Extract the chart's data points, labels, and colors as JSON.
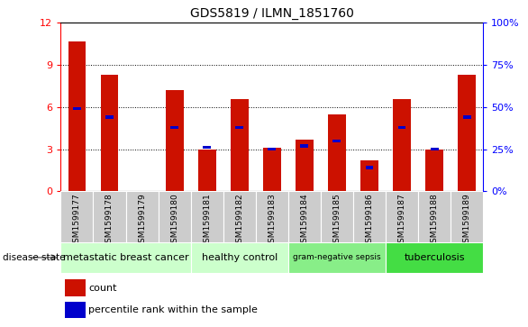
{
  "title": "GDS5819 / ILMN_1851760",
  "samples": [
    "GSM1599177",
    "GSM1599178",
    "GSM1599179",
    "GSM1599180",
    "GSM1599181",
    "GSM1599182",
    "GSM1599183",
    "GSM1599184",
    "GSM1599185",
    "GSM1599186",
    "GSM1599187",
    "GSM1599188",
    "GSM1599189"
  ],
  "counts": [
    10.7,
    8.3,
    0,
    7.2,
    3.0,
    6.6,
    3.1,
    3.7,
    5.5,
    2.2,
    6.6,
    3.0,
    8.3
  ],
  "percentiles": [
    49,
    44,
    0,
    38,
    26,
    38,
    25,
    27,
    30,
    14,
    38,
    25,
    44
  ],
  "group_labels": [
    "metastatic breast cancer",
    "healthy control",
    "gram-negative sepsis",
    "tuberculosis"
  ],
  "group_ranges": [
    [
      0,
      4
    ],
    [
      4,
      7
    ],
    [
      7,
      10
    ],
    [
      10,
      13
    ]
  ],
  "group_colors": [
    "#ccffcc",
    "#ccffcc",
    "#88ee88",
    "#44dd44"
  ],
  "group_fontsizes": [
    8,
    8,
    6.5,
    8
  ],
  "ylim_left": [
    0,
    12
  ],
  "ylim_right": [
    0,
    100
  ],
  "yticks_left": [
    0,
    3,
    6,
    9,
    12
  ],
  "yticks_right": [
    0,
    25,
    50,
    75,
    100
  ],
  "bar_color_red": "#cc1100",
  "bar_color_blue": "#0000cc",
  "sample_bg": "#cccccc",
  "disease_state_label": "disease state",
  "legend_count": "count",
  "legend_percentile": "percentile rank within the sample",
  "bar_width": 0.55
}
